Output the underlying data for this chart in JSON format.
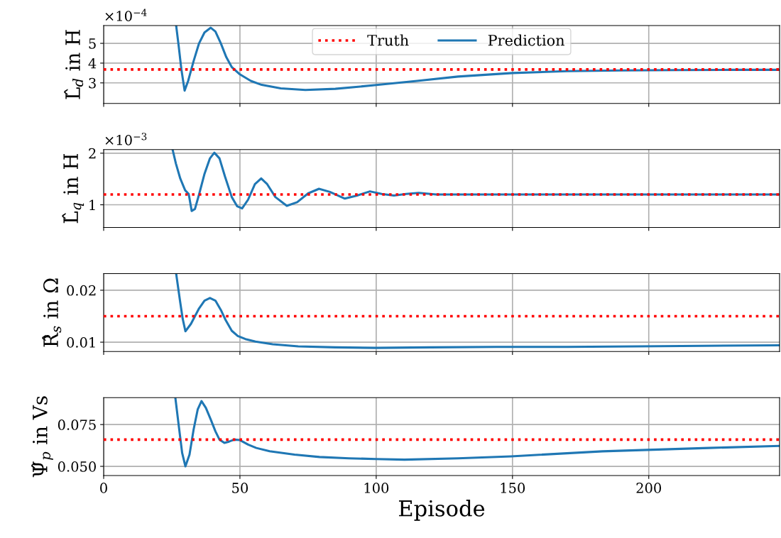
{
  "chart_data": [
    {
      "type": "line",
      "ylabel": "L̂$_{d}$ in H",
      "annotations": [
        "×10$^{−4}$"
      ],
      "xlim": [
        0,
        248
      ],
      "xticks": [
        0,
        50,
        100,
        150,
        200
      ],
      "ylim": [
        1.96,
        5.9
      ],
      "yticks": [
        3,
        4,
        5
      ],
      "grid": true,
      "legend": "top",
      "tick_labels": "y",
      "series": [
        {
          "name": "Truth",
          "color": "#ff0000",
          "line_style": "dotted",
          "x": [
            0,
            248
          ],
          "values": [
            3.68,
            3.68
          ]
        },
        {
          "name": "Prediction",
          "color": "#1f77b4",
          "line_style": "solid",
          "x": [
            26.6,
            27.5,
            28.5,
            29.7,
            31,
            33,
            35,
            37,
            39.3,
            41,
            43,
            45,
            47,
            50,
            54,
            58,
            65,
            74,
            85,
            100,
            115,
            130,
            150,
            170,
            190,
            210,
            230,
            248
          ],
          "values": [
            5.9,
            4.9,
            3.7,
            2.61,
            3.1,
            4.1,
            5.0,
            5.55,
            5.79,
            5.6,
            5.0,
            4.3,
            3.8,
            3.43,
            3.1,
            2.9,
            2.72,
            2.64,
            2.7,
            2.89,
            3.1,
            3.32,
            3.5,
            3.59,
            3.63,
            3.65,
            3.66,
            3.66
          ]
        }
      ]
    },
    {
      "type": "line",
      "ylabel": "L̂$_{q}$ in H",
      "annotations": [
        "×10$^{−3}$"
      ],
      "xlim": [
        0,
        248
      ],
      "xticks": [
        0,
        50,
        100,
        150,
        200
      ],
      "ylim": [
        0.56,
        2.07
      ],
      "yticks": [
        1,
        2
      ],
      "grid": true,
      "tick_labels": "y",
      "series": [
        {
          "color": "#ff0000",
          "line_style": "dotted",
          "x": [
            0,
            248
          ],
          "values": [
            1.2,
            1.2
          ]
        },
        {
          "color": "#1f77b4",
          "line_style": "solid",
          "x": [
            25.3,
            26.5,
            28.1,
            29.9,
            31.2,
            32.3,
            33.5,
            35,
            37,
            39,
            40.6,
            42.5,
            44.5,
            47,
            49,
            50.8,
            53,
            55.5,
            57.8,
            60,
            63,
            67.2,
            71,
            75,
            79,
            83,
            88.5,
            93,
            97.7,
            102,
            106.5,
            111,
            115.6,
            122,
            130,
            150,
            200,
            248
          ],
          "values": [
            2.07,
            1.8,
            1.51,
            1.28,
            1.21,
            0.88,
            0.92,
            1.2,
            1.6,
            1.9,
            2.01,
            1.9,
            1.55,
            1.15,
            0.97,
            0.93,
            1.1,
            1.4,
            1.51,
            1.4,
            1.15,
            0.98,
            1.05,
            1.22,
            1.31,
            1.25,
            1.12,
            1.18,
            1.26,
            1.21,
            1.18,
            1.21,
            1.23,
            1.2,
            1.2,
            1.2,
            1.2,
            1.2
          ]
        }
      ]
    },
    {
      "type": "line",
      "ylabel": "R̂$_{s}$ in Ω",
      "xlim": [
        0,
        248
      ],
      "xticks": [
        0,
        50,
        100,
        150,
        200
      ],
      "ylim": [
        0.0082,
        0.0232
      ],
      "yticks": [
        0.01,
        0.02
      ],
      "grid": true,
      "tick_labels": "y",
      "series": [
        {
          "color": "#ff0000",
          "line_style": "dotted",
          "x": [
            0,
            248
          ],
          "values": [
            0.015,
            0.015
          ]
        },
        {
          "color": "#1f77b4",
          "line_style": "solid",
          "x": [
            26.6,
            28,
            29,
            30,
            32,
            35,
            37,
            39,
            41,
            43,
            44.8,
            47,
            49.2,
            52,
            55.7,
            62,
            71.4,
            85,
            100,
            120,
            144,
            170,
            196,
            220,
            248
          ],
          "values": [
            0.0232,
            0.018,
            0.0145,
            0.0121,
            0.0135,
            0.0165,
            0.018,
            0.0185,
            0.018,
            0.0162,
            0.0142,
            0.0122,
            0.0112,
            0.0106,
            0.0101,
            0.0096,
            0.0092,
            0.009,
            0.0089,
            0.009,
            0.0091,
            0.0091,
            0.0092,
            0.0093,
            0.0094
          ]
        }
      ]
    },
    {
      "type": "line",
      "ylabel": "Ψ̂$_{p}$ in Vs",
      "xlabel": "Episode",
      "xlim": [
        0,
        248
      ],
      "xticks": [
        0,
        50,
        100,
        150,
        200
      ],
      "ylim": [
        0.0445,
        0.0911
      ],
      "yticks": [
        {
          "value": 0.05,
          "label": "0.050"
        },
        {
          "value": 0.075,
          "label": "0.075"
        }
      ],
      "grid": true,
      "series": [
        {
          "color": "#ff0000",
          "line_style": "dotted",
          "x": [
            0,
            248
          ],
          "values": [
            0.066,
            0.066
          ]
        },
        {
          "color": "#1f77b4",
          "line_style": "solid",
          "x": [
            26.3,
            27.5,
            28.8,
            30,
            31.5,
            33,
            34.5,
            35.9,
            37.5,
            39.3,
            41,
            42.5,
            44.3,
            46,
            47.9,
            50,
            53,
            56,
            60.9,
            70,
            79.2,
            90,
            100,
            110.4,
            130,
            149.5,
            183,
            222,
            248
          ],
          "values": [
            0.0911,
            0.075,
            0.058,
            0.05,
            0.057,
            0.072,
            0.084,
            0.089,
            0.085,
            0.078,
            0.071,
            0.066,
            0.064,
            0.0648,
            0.066,
            0.0657,
            0.063,
            0.061,
            0.059,
            0.057,
            0.0556,
            0.0548,
            0.0544,
            0.054,
            0.0548,
            0.056,
            0.059,
            0.061,
            0.0622
          ]
        }
      ]
    }
  ]
}
